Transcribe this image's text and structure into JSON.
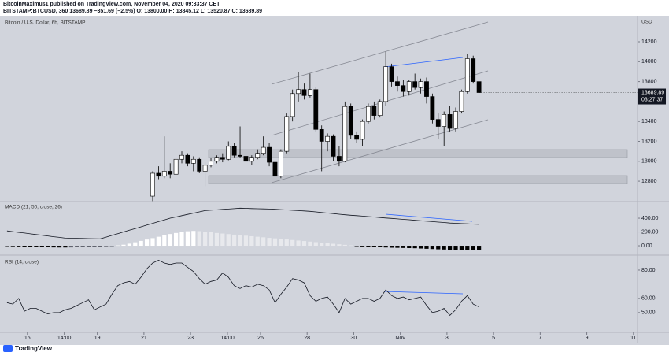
{
  "header": {
    "publisher": "BitcoinMaximus1 published on TradingView.com, November 04, 2020 09:33:37 CET",
    "quote": "BITSTAMP:BTCUSD, 360  13689.89  −351.69 (−2.5%)  O: 13800.00  H: 13845.12  L: 13520.87  C: 13689.89",
    "footer": "TradingView"
  },
  "chart_data": [
    {
      "type": "candlestick",
      "title": "Bitcoin / U.S. Dollar, 6h, BITSTAMP",
      "currency": "USD",
      "up_color": "#ffffff",
      "down_color": "#000000",
      "x": [
        1.5,
        2.5,
        3.5,
        4.5,
        5.5,
        6.5,
        7.5,
        8.5,
        9.5,
        10.5,
        11.5,
        12.5,
        13.5,
        14.5,
        15.5,
        16.5,
        17.5,
        18.5,
        19.5,
        20.5,
        21.5,
        22.5,
        23.5,
        24.5,
        25.5,
        26.5,
        27.5,
        28.5,
        29.5,
        30.5,
        31.5,
        32.5,
        33.5,
        34.5,
        35.5,
        36.5,
        37.5,
        38.5,
        39.5,
        40.5,
        41.5,
        42.5,
        43.5,
        44.5,
        45.5,
        46.5,
        47.5,
        48.5,
        49.5,
        50.5,
        51.5,
        52.5,
        53.5,
        54.5,
        55.5,
        56.5,
        57.5
      ],
      "open": [
        12650,
        12880,
        12850,
        12900,
        12870,
        13020,
        13060,
        12980,
        13020,
        12900,
        12960,
        13000,
        13040,
        13020,
        13150,
        13060,
        13050,
        13000,
        13040,
        13080,
        13140,
        12990,
        12850,
        13100,
        13450,
        13680,
        13720,
        13660,
        13720,
        13320,
        13200,
        13250,
        13050,
        13000,
        13550,
        13260,
        13220,
        13400,
        13550,
        13460,
        13600,
        13950,
        13800,
        13760,
        13700,
        13800,
        13740,
        13800,
        13650,
        13420,
        13350,
        13470,
        13330,
        13500,
        13700,
        14030,
        13800
      ],
      "high": [
        12900,
        12950,
        13250,
        12980,
        13050,
        13100,
        13080,
        13050,
        13040,
        12990,
        13030,
        13060,
        13080,
        13200,
        13180,
        13350,
        13100,
        13060,
        13120,
        13250,
        13180,
        13100,
        13120,
        13480,
        13720,
        13900,
        13780,
        13880,
        13740,
        13360,
        13280,
        13270,
        13150,
        13600,
        13580,
        13300,
        13420,
        13580,
        13600,
        13620,
        14100,
        13980,
        13850,
        13820,
        13820,
        13880,
        13830,
        13840,
        13680,
        13480,
        13500,
        13560,
        13540,
        13720,
        14080,
        14060,
        13845.12
      ],
      "low": [
        12600,
        12820,
        12830,
        12830,
        12860,
        12980,
        12950,
        12900,
        12880,
        12750,
        12940,
        12980,
        12990,
        13010,
        13040,
        13030,
        12980,
        12960,
        13020,
        13060,
        12950,
        12760,
        12830,
        13080,
        13400,
        13600,
        13620,
        13640,
        13300,
        12900,
        13100,
        13000,
        12950,
        12990,
        13220,
        13180,
        13150,
        13380,
        13420,
        13440,
        13560,
        13750,
        13700,
        13650,
        13660,
        13720,
        13680,
        13580,
        13380,
        13220,
        13150,
        13300,
        13300,
        13480,
        13680,
        13780,
        13520.87
      ],
      "close": [
        12880,
        12850,
        12900,
        12870,
        13020,
        13060,
        12980,
        13020,
        12900,
        12960,
        13000,
        13040,
        13020,
        13150,
        13060,
        13050,
        13000,
        13040,
        13080,
        13140,
        12990,
        12850,
        13100,
        13450,
        13680,
        13720,
        13660,
        13720,
        13320,
        13200,
        13250,
        13050,
        13000,
        13550,
        13260,
        13220,
        13400,
        13550,
        13460,
        13600,
        13950,
        13800,
        13760,
        13700,
        13800,
        13740,
        13800,
        13650,
        13420,
        13350,
        13470,
        13330,
        13500,
        13700,
        14030,
        13800,
        13689.89
      ],
      "countdown": "03:27:37",
      "xlim": [
        -24.7,
        84.7
      ],
      "xticks": [
        {
          "value": -20,
          "label": "16"
        },
        {
          "value": -13.67,
          "label": "14:00"
        },
        {
          "value": -8,
          "label": "19"
        },
        {
          "value": 0,
          "label": "21"
        },
        {
          "value": 8,
          "label": "23"
        },
        {
          "value": 14.33,
          "label": "14:00"
        },
        {
          "value": 20,
          "label": "26"
        },
        {
          "value": 28,
          "label": "28"
        },
        {
          "value": 36,
          "label": "30"
        },
        {
          "value": 44,
          "label": "Nov"
        },
        {
          "value": 52,
          "label": "3"
        },
        {
          "value": 60,
          "label": "5"
        },
        {
          "value": 68,
          "label": "7"
        },
        {
          "value": 76,
          "label": "9"
        },
        {
          "value": 84,
          "label": "11"
        }
      ],
      "ylim": [
        12603,
        14461
      ],
      "yticks": [
        14200,
        14000,
        13800,
        13400,
        13200,
        13000,
        12800
      ]
    },
    {
      "type": "macd",
      "title": "MACD (21, 50, close, 26)",
      "x": [
        -23.5,
        -22.5,
        -21.5,
        -20.5,
        -19.5,
        -18.5,
        -17.5,
        -16.5,
        -15.5,
        -14.5,
        -13.5,
        -12.5,
        -11.5,
        -10.5,
        -9.5,
        -8.5,
        -7.5,
        -6.5,
        -5.5,
        -4.5,
        -3.5,
        -2.5,
        -1.5,
        -0.5,
        0.5,
        1.5,
        2.5,
        3.5,
        4.5,
        5.5,
        6.5,
        7.5,
        8.5,
        9.5,
        10.5,
        11.5,
        12.5,
        13.5,
        14.5,
        15.5,
        16.5,
        17.5,
        18.5,
        19.5,
        20.5,
        21.5,
        22.5,
        23.5,
        24.5,
        25.5,
        26.5,
        27.5,
        28.5,
        29.5,
        30.5,
        31.5,
        32.5,
        33.5,
        34.5,
        35.5,
        36.5,
        37.5,
        38.5,
        39.5,
        40.5,
        41.5,
        42.5,
        43.5,
        44.5,
        45.5,
        46.5,
        47.5,
        48.5,
        49.5,
        50.5,
        51.5,
        52.5,
        53.5,
        54.5,
        55.5,
        56.5,
        57.5
      ],
      "histogram": [
        -5,
        -8,
        -10,
        -12,
        -15,
        -18,
        -20,
        -22,
        -24,
        -25,
        -25,
        -24,
        -22,
        -20,
        -18,
        -15,
        -12,
        -8,
        -4,
        5,
        15,
        30,
        50,
        70,
        90,
        110,
        130,
        150,
        170,
        185,
        200,
        210,
        215,
        212,
        205,
        195,
        185,
        177,
        169,
        161,
        153,
        146,
        138,
        130,
        122,
        114,
        107,
        99,
        91,
        83,
        75,
        68,
        60,
        52,
        44,
        36,
        29,
        21,
        13,
        5,
        -5,
        -10,
        -14,
        -18,
        -22,
        -25,
        -28,
        -30,
        -32,
        -34,
        -36,
        -40,
        -44,
        -48,
        -52,
        -55,
        -58,
        -60,
        -62,
        -64,
        -65,
        -66
      ],
      "macd": [
        215,
        205,
        194,
        184,
        173,
        163,
        152,
        142,
        131,
        121,
        110,
        108,
        107,
        105,
        103,
        102,
        100,
        125,
        150,
        175,
        200,
        225,
        250,
        275,
        300,
        325,
        350,
        375,
        400,
        418,
        437,
        455,
        473,
        492,
        510,
        516,
        522,
        528,
        533,
        539,
        545,
        543,
        540,
        538,
        535,
        533,
        530,
        525,
        520,
        515,
        510,
        505,
        500,
        492,
        483,
        475,
        467,
        458,
        450,
        443,
        437,
        430,
        423,
        417,
        410,
        403,
        397,
        390,
        383,
        377,
        370,
        363,
        357,
        350,
        343,
        337,
        330,
        326,
        322,
        318,
        314,
        310
      ],
      "ylim": [
        -114,
        629
      ],
      "yticks": [
        {
          "value": 400,
          "label": "400.00"
        },
        {
          "value": 200,
          "label": "200.00"
        },
        {
          "value": 0,
          "label": "0.00"
        }
      ]
    },
    {
      "type": "line",
      "title": "RSI (14, close)",
      "color": "#131722",
      "x": [
        -23.5,
        -22.5,
        -21.5,
        -20.5,
        -19.5,
        -18.5,
        -17.5,
        -16.5,
        -15.5,
        -14.5,
        -13.5,
        -12.5,
        -11.5,
        -10.5,
        -9.5,
        -8.5,
        -7.5,
        -6.5,
        -5.5,
        -4.5,
        -3.5,
        -2.5,
        -1.5,
        -0.5,
        0.5,
        1.5,
        2.5,
        3.5,
        4.5,
        5.5,
        6.5,
        7.5,
        8.5,
        9.5,
        10.5,
        11.5,
        12.5,
        13.5,
        14.5,
        15.5,
        16.5,
        17.5,
        18.5,
        19.5,
        20.5,
        21.5,
        22.5,
        23.5,
        24.5,
        25.5,
        26.5,
        27.5,
        28.5,
        29.5,
        30.5,
        31.5,
        32.5,
        33.5,
        34.5,
        35.5,
        36.5,
        37.5,
        38.5,
        39.5,
        40.5,
        41.5,
        42.5,
        43.5,
        44.5,
        45.5,
        46.5,
        47.5,
        48.5,
        49.5,
        50.5,
        51.5,
        52.5,
        53.5,
        54.5,
        55.5,
        56.5,
        57.5
      ],
      "values": [
        57,
        56,
        60,
        51,
        53,
        53,
        51,
        49,
        50,
        50,
        52,
        53,
        55,
        57,
        59,
        52,
        54,
        56,
        63,
        69,
        71,
        72,
        70,
        75,
        81,
        85,
        87,
        85,
        84,
        85,
        85,
        82,
        79,
        74,
        70,
        72,
        73,
        78,
        75,
        69,
        67,
        69,
        68,
        70,
        69,
        66,
        57,
        63,
        68,
        74,
        73,
        71,
        62,
        58,
        60,
        61,
        56,
        50,
        60,
        56,
        58,
        60,
        60,
        58,
        60,
        66,
        62,
        60,
        61,
        59,
        60,
        61,
        55,
        50,
        51,
        53,
        48,
        52,
        58,
        62,
        56,
        54
      ],
      "ylim": [
        36,
        90
      ],
      "yticks": [
        {
          "value": 80,
          "label": "80.00"
        },
        {
          "value": 60,
          "label": "60.00"
        },
        {
          "value": 50,
          "label": "50.00"
        }
      ]
    }
  ]
}
